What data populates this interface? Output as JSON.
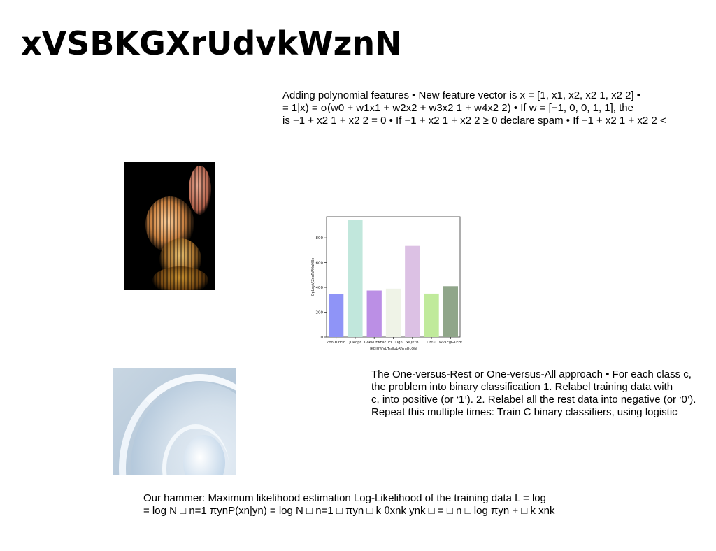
{
  "title": "xVSBKGXrUdvkWznN",
  "para1": [
    "Adding polynomial features • New feature vector is x = [1, x1, x2, x2 1, x2 2] •",
    "= 1|x) = σ(w0 + w1x1 + w2x2 + w3x2 1 + w4x2 2) • If w = [−1, 0, 0, 1, 1], the",
    "is −1 + x2 1 + x2 2 = 0 • If −1 + x2 1 + x2 2 ≥ 0 declare spam • If −1 + x2 1 + x2 2 <"
  ],
  "para2": [
    "The One-versus-Rest or One-versus-All approach • For each class c,",
    "the problem into binary classification 1. Relabel training data with",
    "c, into positive (or ‘1’). 2. Relabel all the rest data into negative (or ‘0’).",
    "Repeat this multiple times: Train C binary classifiers, using logistic"
  ],
  "para3": [
    "Our hammer: Maximum likelihood estimation Log-Likelihood of the training data L = log",
    "= log N □ n=1 πynP(xn|yn) = log N □ n=1 □ πyn □ k θxnk ynk □ = □ n □ log πyn + □ k xnk"
  ],
  "chart_data": {
    "type": "bar",
    "categories": [
      "ZoolXOYSb",
      "jQAqpr",
      "GokVLzwEa",
      "ZuFCTOgn",
      "xiQPYB",
      "OFfXI",
      "WvKFgGKEHf"
    ],
    "values": [
      345,
      945,
      375,
      390,
      735,
      350,
      410
    ],
    "colors": [
      "#8f94f7",
      "#c1e7dc",
      "#bb8fe5",
      "#eff3e7",
      "#dcc1e4",
      "#c0ea9b",
      "#90a68a"
    ],
    "xlabel": "IKBIUWVbTsdJobRNmHcON",
    "ylabel": "OpLxyVjZsoTsPHuHBe",
    "yticks": [
      0,
      200,
      400,
      600,
      800
    ],
    "ylim": [
      0,
      970
    ]
  }
}
